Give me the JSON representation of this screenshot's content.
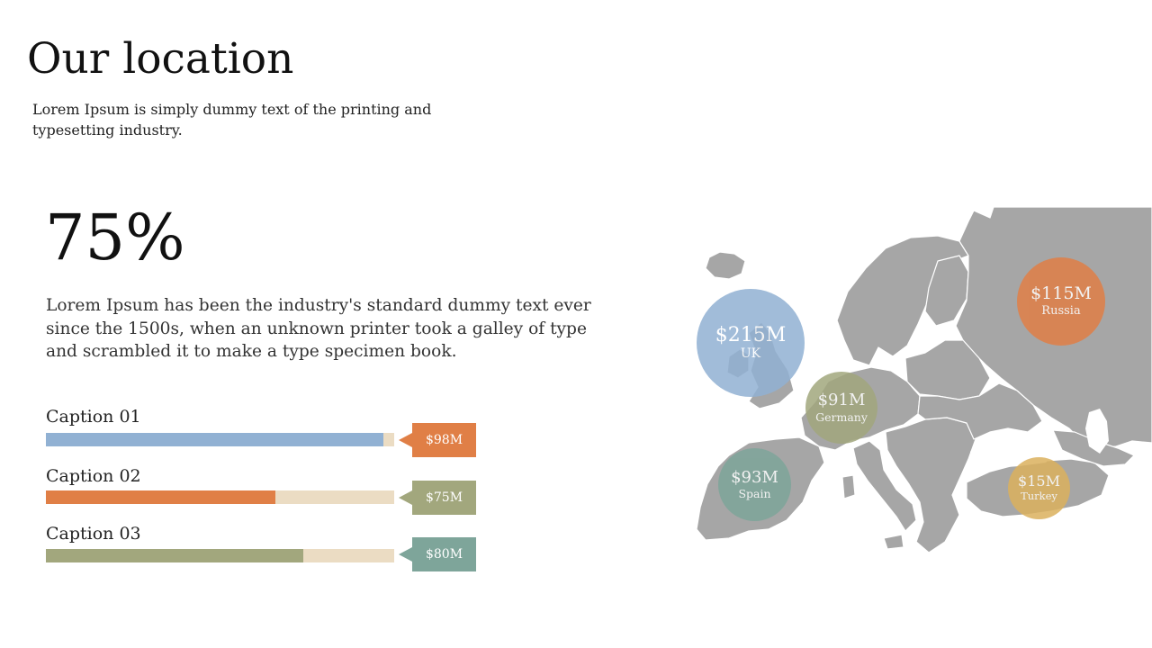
{
  "title": "Our location",
  "subtitle": "Lorem Ipsum is simply dummy text of the printing and typesetting industry.",
  "big_stat": "75%",
  "body": "Lorem Ipsum has been the industry's standard dummy text ever since the 1500s, when an unknown printer took a galley of type and scrambled it to make a type specimen book.",
  "captions": [
    {
      "label": "Caption 01",
      "value": "$98M",
      "fill_fraction": 0.97,
      "bar_color": "#91b1d3",
      "tag_color": "#e07f46"
    },
    {
      "label": "Caption 02",
      "value": "$75M",
      "fill_fraction": 0.66,
      "bar_color": "#e07f46",
      "tag_color": "#a2a77d"
    },
    {
      "label": "Caption 03",
      "value": "$80M",
      "fill_fraction": 0.74,
      "bar_color": "#a2a77d",
      "tag_color": "#7ea59a"
    }
  ],
  "track_color": "#ebdcc3",
  "map_color": "#a6a6a6",
  "map_bubbles": [
    {
      "amount": "$215M",
      "country": "UK",
      "color": "#91b1d3"
    },
    {
      "amount": "$115M",
      "country": "Russia",
      "color": "#e07f46"
    },
    {
      "amount": "$91M",
      "country": "Germany",
      "color": "#a2a77d"
    },
    {
      "amount": "$93M",
      "country": "Spain",
      "color": "#7ea59a"
    },
    {
      "amount": "$15M",
      "country": "Turkey",
      "color": "#dbb15e"
    }
  ]
}
